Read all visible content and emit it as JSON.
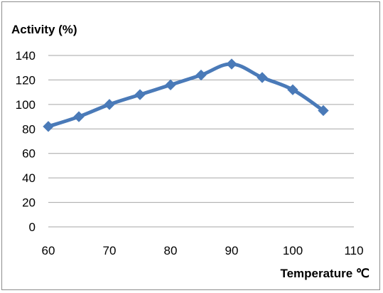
{
  "chart_data": {
    "type": "line",
    "title": "",
    "xlabel": "Temperature ℃",
    "ylabel": "Activity (%)",
    "xlim": [
      60,
      110
    ],
    "ylim": [
      0,
      140
    ],
    "x_ticks": [
      60,
      70,
      80,
      90,
      100,
      110
    ],
    "y_ticks": [
      0,
      20,
      40,
      60,
      80,
      100,
      120,
      140
    ],
    "grid": "horizontal",
    "legend": "none",
    "colors": {
      "series": "#4a7ab8",
      "grid": "#a6a6a6",
      "frame": "#8c8c8c"
    },
    "series": [
      {
        "marker": "diamond",
        "x": [
          60,
          65,
          70,
          75,
          80,
          85,
          90,
          95,
          100,
          105
        ],
        "y": [
          82,
          90,
          100,
          108,
          116,
          124,
          133,
          122,
          112,
          95
        ]
      }
    ]
  }
}
